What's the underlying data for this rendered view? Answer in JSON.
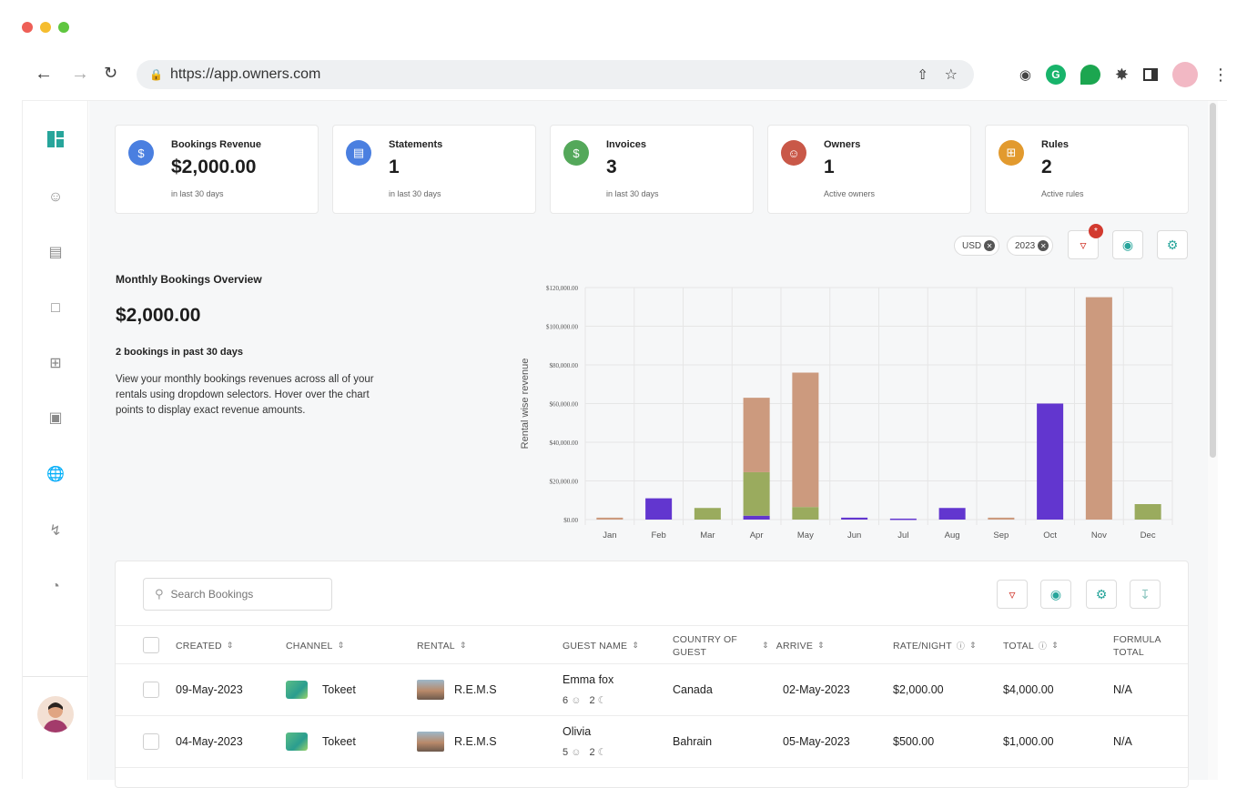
{
  "browser": {
    "url": "https://app.owners.com",
    "traffic_colors": [
      "#ee5f57",
      "#f5bd2f",
      "#5fc63f"
    ]
  },
  "stats": [
    {
      "title": "Bookings Revenue",
      "value": "$2,000.00",
      "sub": "in last 30 days",
      "icon": "revenue-icon",
      "color": "#4a7fe0"
    },
    {
      "title": "Statements",
      "value": "1",
      "sub": "in last 30 days",
      "icon": "statement-icon",
      "color": "#4a7fe0"
    },
    {
      "title": "Invoices",
      "value": "3",
      "sub": "in last 30 days",
      "icon": "invoice-icon",
      "color": "#54a85a"
    },
    {
      "title": "Owners",
      "value": "1",
      "sub": "Active owners",
      "icon": "owners-icon",
      "color": "#c95848"
    },
    {
      "title": "Rules",
      "value": "2",
      "sub": "Active rules",
      "icon": "rules-icon",
      "color": "#e29a2e"
    }
  ],
  "filters": {
    "currency": "USD",
    "year": "2023",
    "badge": "*"
  },
  "overview": {
    "title": "Monthly Bookings Overview",
    "amount": "$2,000.00",
    "count": "2 bookings in past 30 days",
    "description": "View your monthly bookings revenues across all of your rentals using dropdown selectors. Hover over the chart points to display exact revenue amounts."
  },
  "chart_data": {
    "type": "bar",
    "stacked": true,
    "categories": [
      "Jan",
      "Feb",
      "Mar",
      "Apr",
      "May",
      "Jun",
      "Jul",
      "Aug",
      "Sep",
      "Oct",
      "Nov",
      "Dec"
    ],
    "ylabel": "Rental wise revenue",
    "ylim": [
      0,
      120000
    ],
    "yticks": [
      "$0.00",
      "$20,000.00",
      "$40,000.00",
      "$60,000.00",
      "$80,000.00",
      "$100,000.00",
      "$120,000.00"
    ],
    "grid": true,
    "series": [
      {
        "color": "#6236cf",
        "values": [
          0,
          11000,
          0,
          2000,
          0,
          1000,
          500,
          6000,
          0,
          60000,
          0,
          0
        ]
      },
      {
        "color": "#9aab5e",
        "values": [
          0,
          0,
          6000,
          22500,
          6500,
          0,
          0,
          0,
          0,
          0,
          0,
          8000
        ]
      },
      {
        "color": "#cc9a7e",
        "values": [
          1000,
          0,
          0,
          38500,
          69500,
          0,
          0,
          0,
          1000,
          0,
          115000,
          0
        ]
      }
    ]
  },
  "table": {
    "search_placeholder": "Search Bookings",
    "columns": [
      "CREATED",
      "CHANNEL",
      "RENTAL",
      "GUEST NAME",
      "COUNTRY OF GUEST",
      "ARRIVE",
      "RATE/NIGHT",
      "TOTAL",
      "FORMULA TOTAL"
    ],
    "rows": [
      {
        "created": "09-May-2023",
        "channel": "Tokeet",
        "rental": "R.E.M.S",
        "guest": "Emma fox",
        "guests": "6",
        "nights": "2",
        "country": "Canada",
        "arrive": "02-May-2023",
        "rate": "$2,000.00",
        "total": "$4,000.00",
        "formula": "N/A"
      },
      {
        "created": "04-May-2023",
        "channel": "Tokeet",
        "rental": "R.E.M.S",
        "guest": "Olivia",
        "guests": "5",
        "nights": "2",
        "country": "Bahrain",
        "arrive": "05-May-2023",
        "rate": "$500.00",
        "total": "$1,000.00",
        "formula": "N/A"
      }
    ]
  }
}
